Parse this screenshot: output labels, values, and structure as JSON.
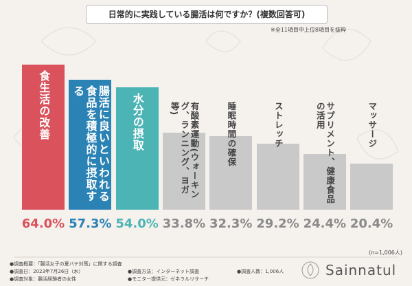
{
  "chart_data": {
    "type": "bar",
    "title": "日常的に実践している腸活は何ですか？(複数回答可)",
    "note": "※全11項目中上位8項目を抜粋",
    "categories": [
      "食生活の改善",
      "腸活に良いといわれる食品を積極的に摂取する",
      "水分の摂取",
      "有酸素運動(ウォーキング、ランニング、ヨガ等)",
      "睡眠時間の確保",
      "ストレッチ",
      "サプリメント、健康食品の活用",
      "マッサージ"
    ],
    "values": [
      64.0,
      57.3,
      54.0,
      33.8,
      32.3,
      29.2,
      24.4,
      20.4
    ],
    "value_labels": [
      "64.0%",
      "57.3%",
      "54.0%",
      "33.8%",
      "32.3%",
      "29.2%",
      "24.4%",
      "20.4%"
    ],
    "colors": [
      "#d9525c",
      "#2b82b4",
      "#4db4b6",
      "#c9c9c9",
      "#c9c9c9",
      "#c9c9c9",
      "#c9c9c9",
      "#c9c9c9"
    ],
    "value_label_colors": [
      "#d9525c",
      "#2b82b4",
      "#4db4b6",
      "#8a8a8a",
      "#8a8a8a",
      "#8a8a8a",
      "#8a8a8a",
      "#8a8a8a"
    ],
    "sample_size": "(n=1,006人)",
    "survey": [
      "●調査概要：「腸活女子の夏バテ対策」に関する調査",
      "●調査日：2023年7月26日（水）",
      "●調査方法：インターネット調査",
      "●調査人数：1,006人",
      "●調査対象：腸活経験者の女性",
      "●モニター提供元：ゼネラルリサーチ"
    ],
    "brand": "Sainnatul"
  }
}
